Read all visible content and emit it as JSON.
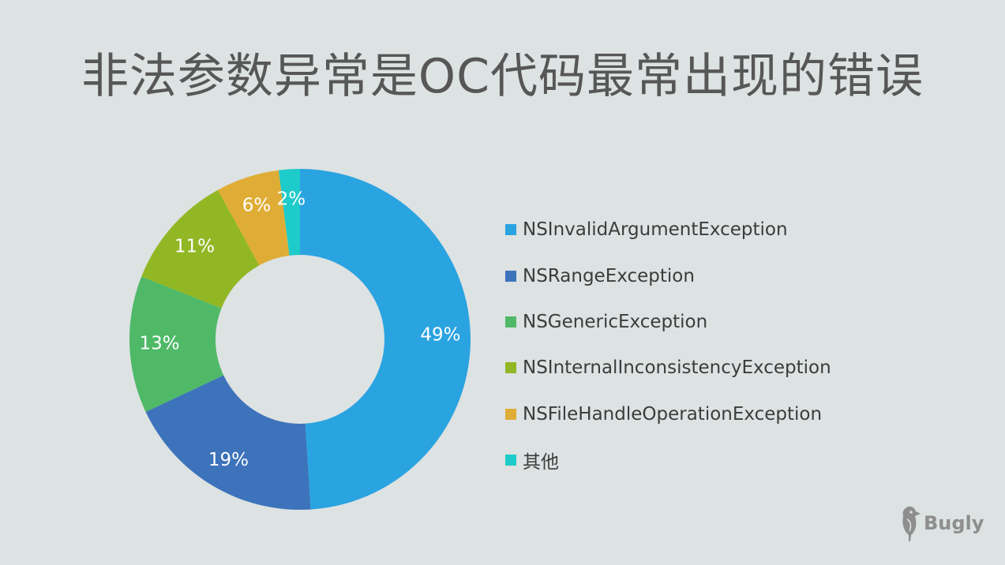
{
  "title": "非法参数异常是OC代码最常出现的错误",
  "brand": {
    "name": "Bugly",
    "icon": "woodpecker-icon"
  },
  "chart_data": {
    "type": "pie",
    "variant": "donut",
    "title": "非法参数异常是OC代码最常出现的错误",
    "legend_position": "right",
    "categories": [
      "NSInvalidArgumentException",
      "NSRangeException",
      "NSGenericException",
      "NSInternalInconsistencyException",
      "NSFileHandleOperationException",
      "其他"
    ],
    "values": [
      49,
      19,
      13,
      11,
      6,
      2
    ],
    "value_labels": [
      "49%",
      "19%",
      "13%",
      "11%",
      "6%",
      "2%"
    ],
    "colors": [
      "#2aa3e1",
      "#3d73bb",
      "#4fb968",
      "#92b725",
      "#dfad36",
      "#1dcbca"
    ]
  }
}
